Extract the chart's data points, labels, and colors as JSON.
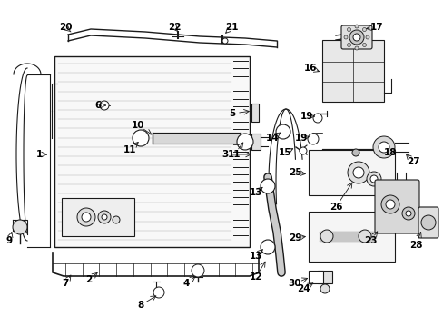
{
  "bg_color": "#ffffff",
  "fig_width": 4.89,
  "fig_height": 3.6,
  "dpi": 100,
  "line_color": "#1a1a1a",
  "text_color": "#000000",
  "font_size": 7.5
}
